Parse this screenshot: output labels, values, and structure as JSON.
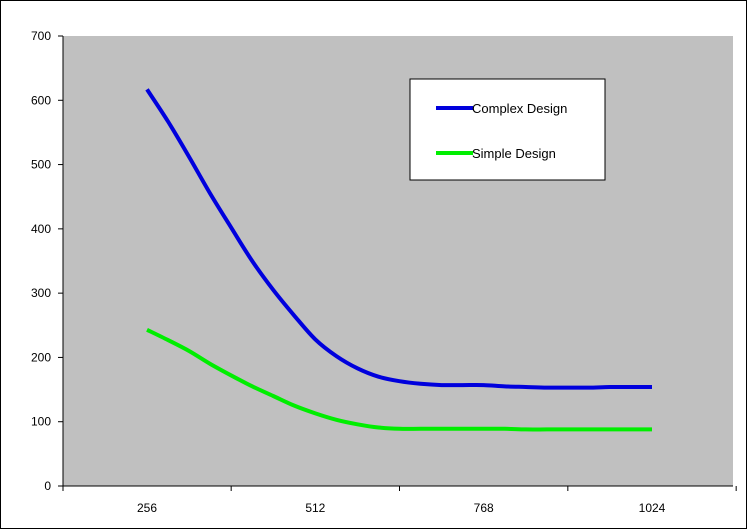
{
  "chart_data": {
    "type": "line",
    "title": "",
    "xlabel": "",
    "ylabel": "",
    "x": [
      256,
      288,
      320,
      352,
      384,
      416,
      448,
      480,
      512,
      544,
      576,
      608,
      640,
      672,
      704,
      736,
      768,
      800,
      832,
      864,
      896,
      928,
      960,
      992,
      1024
    ],
    "x_tick_labels": [
      "256",
      "512",
      "768",
      "1024"
    ],
    "x_tick_values": [
      256,
      512,
      768,
      1024
    ],
    "ylim": [
      0,
      700
    ],
    "y_tick_labels": [
      "0",
      "100",
      "200",
      "300",
      "400",
      "500",
      "600",
      "700"
    ],
    "y_tick_values": [
      0,
      100,
      200,
      300,
      400,
      500,
      600,
      700
    ],
    "grid": false,
    "plot_background": "#c0c0c0",
    "legend_position": "top-right",
    "series": [
      {
        "name": "Complex Design",
        "color": "#0000dd",
        "values": [
          617,
          567,
          512,
          455,
          402,
          350,
          305,
          265,
          228,
          202,
          183,
          170,
          163,
          159,
          157,
          157,
          157,
          155,
          154,
          153,
          153,
          153,
          154,
          154,
          154
        ]
      },
      {
        "name": "Simple Design",
        "color": "#00ee00",
        "values": [
          243,
          227,
          210,
          190,
          172,
          155,
          140,
          125,
          113,
          103,
          96,
          91,
          89,
          89,
          89,
          89,
          89,
          89,
          88,
          88,
          88,
          88,
          88,
          88,
          88
        ]
      }
    ]
  }
}
